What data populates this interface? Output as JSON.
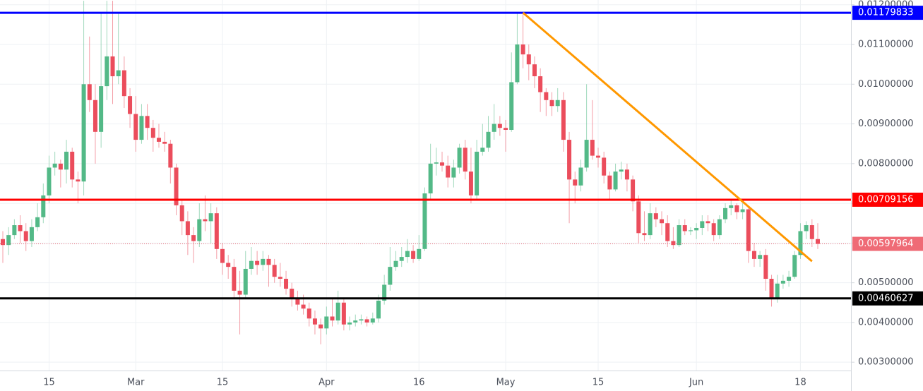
{
  "chart_data": {
    "type": "candlestick",
    "up_color": "#53b987",
    "down_color": "#eb4d5c",
    "grid": true,
    "ylim": [
      0.00279,
      0.01212
    ],
    "yticks": [
      {
        "value": 0.003,
        "label": "0.00300000"
      },
      {
        "value": 0.004,
        "label": "0.00400000"
      },
      {
        "value": 0.005,
        "label": "0.00500000"
      },
      {
        "value": 0.006,
        "label": "0.00600000"
      },
      {
        "value": 0.007,
        "label": "0.00700000"
      },
      {
        "value": 0.008,
        "label": "0.00800000"
      },
      {
        "value": 0.009,
        "label": "0.00900000"
      },
      {
        "value": 0.01,
        "label": "0.01000000"
      },
      {
        "value": 0.011,
        "label": "0.01100000"
      },
      {
        "value": 0.012,
        "label": "0.01200000"
      }
    ],
    "categories": [
      null,
      null,
      null,
      null,
      null,
      null,
      null,
      null,
      "15",
      null,
      null,
      null,
      null,
      null,
      null,
      null,
      null,
      null,
      null,
      null,
      null,
      null,
      null,
      "Mar",
      null,
      null,
      null,
      null,
      null,
      null,
      null,
      null,
      null,
      null,
      null,
      null,
      null,
      null,
      "15",
      null,
      null,
      null,
      null,
      null,
      null,
      null,
      null,
      null,
      null,
      null,
      null,
      null,
      null,
      null,
      null,
      null,
      "Apr",
      null,
      null,
      null,
      null,
      null,
      null,
      null,
      null,
      null,
      null,
      null,
      null,
      null,
      null,
      null,
      "16",
      null,
      null,
      null,
      null,
      null,
      null,
      null,
      null,
      null,
      null,
      null,
      null,
      null,
      null,
      "May",
      null,
      null,
      null,
      null,
      null,
      null,
      null,
      null,
      null,
      null,
      null,
      null,
      null,
      null,
      null,
      "15",
      null,
      null,
      null,
      null,
      null,
      null,
      null,
      null,
      null,
      null,
      null,
      null,
      null,
      null,
      null,
      null,
      "Jun",
      null,
      null,
      null,
      null,
      null,
      null,
      null,
      null,
      null,
      null,
      null,
      null,
      null,
      null,
      null,
      null,
      null,
      "18",
      null,
      null,
      null
    ],
    "ohlc": [
      [
        0.0061,
        0.0063,
        0.0055,
        0.00595
      ],
      [
        0.00595,
        0.0064,
        0.0057,
        0.0062
      ],
      [
        0.0062,
        0.0066,
        0.0061,
        0.00645
      ],
      [
        0.00645,
        0.0067,
        0.006,
        0.0063
      ],
      [
        0.0063,
        0.0065,
        0.0058,
        0.00605
      ],
      [
        0.00605,
        0.0066,
        0.0059,
        0.0064
      ],
      [
        0.0064,
        0.007,
        0.0063,
        0.00665
      ],
      [
        0.00665,
        0.0075,
        0.0065,
        0.0072
      ],
      [
        0.0072,
        0.0082,
        0.007,
        0.0079
      ],
      [
        0.0079,
        0.0083,
        0.0077,
        0.008
      ],
      [
        0.008,
        0.0081,
        0.0074,
        0.00785
      ],
      [
        0.00785,
        0.0086,
        0.0075,
        0.0083
      ],
      [
        0.0083,
        0.0084,
        0.0074,
        0.0076
      ],
      [
        0.0076,
        0.0078,
        0.007,
        0.00755
      ],
      [
        0.00755,
        0.0121,
        0.0072,
        0.01
      ],
      [
        0.01,
        0.0112,
        0.0093,
        0.0096
      ],
      [
        0.0096,
        0.01,
        0.008,
        0.0088
      ],
      [
        0.0088,
        0.0118,
        0.0084,
        0.00995
      ],
      [
        0.00995,
        0.0121,
        0.0096,
        0.0107
      ],
      [
        0.0107,
        0.0121,
        0.0095,
        0.0102
      ],
      [
        0.0102,
        0.0118,
        0.01,
        0.01035
      ],
      [
        0.01035,
        0.0107,
        0.0094,
        0.0097
      ],
      [
        0.0097,
        0.0099,
        0.0089,
        0.00925
      ],
      [
        0.00925,
        0.0097,
        0.0083,
        0.0086
      ],
      [
        0.0086,
        0.0095,
        0.0085,
        0.0092
      ],
      [
        0.0092,
        0.0095,
        0.0086,
        0.0089
      ],
      [
        0.0089,
        0.0091,
        0.0083,
        0.00865
      ],
      [
        0.00865,
        0.009,
        0.0084,
        0.00855
      ],
      [
        0.00855,
        0.0088,
        0.0083,
        0.0085
      ],
      [
        0.0085,
        0.0086,
        0.0075,
        0.0079
      ],
      [
        0.0079,
        0.008,
        0.0067,
        0.00695
      ],
      [
        0.00695,
        0.0071,
        0.0062,
        0.00655
      ],
      [
        0.00655,
        0.0068,
        0.0057,
        0.0062
      ],
      [
        0.0062,
        0.0064,
        0.0055,
        0.00605
      ],
      [
        0.00605,
        0.007,
        0.0059,
        0.0066
      ],
      [
        0.0066,
        0.0072,
        0.0063,
        0.00655
      ],
      [
        0.00655,
        0.007,
        0.006,
        0.00675
      ],
      [
        0.00675,
        0.0069,
        0.0056,
        0.00585
      ],
      [
        0.00585,
        0.006,
        0.0052,
        0.0055
      ],
      [
        0.0055,
        0.0057,
        0.0051,
        0.0054
      ],
      [
        0.0054,
        0.0056,
        0.0046,
        0.0048
      ],
      [
        0.0048,
        0.0053,
        0.0037,
        0.0047
      ],
      [
        0.0047,
        0.0058,
        0.0046,
        0.00535
      ],
      [
        0.00535,
        0.0059,
        0.0052,
        0.00555
      ],
      [
        0.00555,
        0.0058,
        0.0052,
        0.00545
      ],
      [
        0.00545,
        0.0058,
        0.0053,
        0.0056
      ],
      [
        0.0056,
        0.0057,
        0.0049,
        0.00545
      ],
      [
        0.00545,
        0.0056,
        0.005,
        0.00515
      ],
      [
        0.00515,
        0.0055,
        0.0049,
        0.0051
      ],
      [
        0.0051,
        0.0053,
        0.0047,
        0.00485
      ],
      [
        0.00485,
        0.005,
        0.0044,
        0.0046
      ],
      [
        0.0046,
        0.0048,
        0.0043,
        0.00445
      ],
      [
        0.00445,
        0.0047,
        0.0042,
        0.00435
      ],
      [
        0.00435,
        0.0045,
        0.0039,
        0.0041
      ],
      [
        0.0041,
        0.0043,
        0.0037,
        0.00395
      ],
      [
        0.00395,
        0.0041,
        0.00345,
        0.00385
      ],
      [
        0.00385,
        0.0044,
        0.0037,
        0.00415
      ],
      [
        0.00415,
        0.0046,
        0.0039,
        0.00405
      ],
      [
        0.00405,
        0.0048,
        0.00395,
        0.0045
      ],
      [
        0.0045,
        0.0046,
        0.0038,
        0.00395
      ],
      [
        0.00395,
        0.00415,
        0.0038,
        0.004
      ],
      [
        0.004,
        0.0042,
        0.0039,
        0.00405
      ],
      [
        0.00405,
        0.0042,
        0.00395,
        0.00408
      ],
      [
        0.00408,
        0.00415,
        0.0039,
        0.004
      ],
      [
        0.004,
        0.00425,
        0.00395,
        0.0041
      ],
      [
        0.0041,
        0.0047,
        0.004,
        0.00455
      ],
      [
        0.00455,
        0.0052,
        0.00445,
        0.00495
      ],
      [
        0.00495,
        0.0059,
        0.0048,
        0.0054
      ],
      [
        0.0054,
        0.0058,
        0.0053,
        0.00555
      ],
      [
        0.00555,
        0.0059,
        0.0054,
        0.00565
      ],
      [
        0.00565,
        0.0061,
        0.0055,
        0.0058
      ],
      [
        0.0058,
        0.00595,
        0.0055,
        0.0056
      ],
      [
        0.0056,
        0.0062,
        0.00555,
        0.00585
      ],
      [
        0.00585,
        0.0074,
        0.0058,
        0.00725
      ],
      [
        0.00725,
        0.0085,
        0.0071,
        0.008
      ],
      [
        0.008,
        0.0084,
        0.0077,
        0.00803
      ],
      [
        0.00803,
        0.0083,
        0.0078,
        0.00795
      ],
      [
        0.00795,
        0.0082,
        0.0074,
        0.00765
      ],
      [
        0.00765,
        0.0081,
        0.0074,
        0.0079
      ],
      [
        0.0079,
        0.0085,
        0.00775,
        0.0084
      ],
      [
        0.0084,
        0.0086,
        0.0076,
        0.0078
      ],
      [
        0.0078,
        0.0084,
        0.007,
        0.0072
      ],
      [
        0.0072,
        0.0086,
        0.0071,
        0.0083
      ],
      [
        0.0083,
        0.009,
        0.0082,
        0.0084
      ],
      [
        0.0084,
        0.0092,
        0.0083,
        0.0088
      ],
      [
        0.0088,
        0.0095,
        0.0086,
        0.009
      ],
      [
        0.009,
        0.0092,
        0.0087,
        0.0089
      ],
      [
        0.0089,
        0.0091,
        0.0083,
        0.00885
      ],
      [
        0.00885,
        0.0108,
        0.0088,
        0.01005
      ],
      [
        0.01005,
        0.0118,
        0.01,
        0.011
      ],
      [
        0.011,
        0.0118,
        0.0104,
        0.01075
      ],
      [
        0.01075,
        0.011,
        0.0101,
        0.0105
      ],
      [
        0.0105,
        0.0107,
        0.0099,
        0.0102
      ],
      [
        0.0102,
        0.0104,
        0.0093,
        0.0098
      ],
      [
        0.0098,
        0.0099,
        0.0092,
        0.0096
      ],
      [
        0.0096,
        0.0098,
        0.0092,
        0.00945
      ],
      [
        0.00945,
        0.0099,
        0.0093,
        0.0096
      ],
      [
        0.0096,
        0.0098,
        0.0083,
        0.0086
      ],
      [
        0.0086,
        0.0088,
        0.0065,
        0.0076
      ],
      [
        0.0076,
        0.0078,
        0.007,
        0.00745
      ],
      [
        0.00745,
        0.0081,
        0.0073,
        0.0079
      ],
      [
        0.0079,
        0.01,
        0.0078,
        0.0086
      ],
      [
        0.0086,
        0.0096,
        0.0081,
        0.0082
      ],
      [
        0.0082,
        0.0084,
        0.0079,
        0.00815
      ],
      [
        0.00815,
        0.0083,
        0.0075,
        0.0077
      ],
      [
        0.0077,
        0.0078,
        0.0071,
        0.00735
      ],
      [
        0.00735,
        0.008,
        0.0073,
        0.0078
      ],
      [
        0.0078,
        0.00805,
        0.0076,
        0.00785
      ],
      [
        0.00785,
        0.008,
        0.0073,
        0.0076
      ],
      [
        0.0076,
        0.0077,
        0.0068,
        0.00705
      ],
      [
        0.00705,
        0.0072,
        0.006,
        0.00625
      ],
      [
        0.00625,
        0.0068,
        0.00605,
        0.0062
      ],
      [
        0.0062,
        0.007,
        0.0061,
        0.00675
      ],
      [
        0.00675,
        0.0069,
        0.0064,
        0.0066
      ],
      [
        0.0066,
        0.0068,
        0.0062,
        0.0065
      ],
      [
        0.0065,
        0.0067,
        0.0059,
        0.00605
      ],
      [
        0.00605,
        0.0064,
        0.00585,
        0.00595
      ],
      [
        0.00595,
        0.0066,
        0.0059,
        0.00645
      ],
      [
        0.00645,
        0.0066,
        0.0062,
        0.0063
      ],
      [
        0.0063,
        0.0064,
        0.0062,
        0.00632
      ],
      [
        0.00632,
        0.0065,
        0.0061,
        0.00638
      ],
      [
        0.00638,
        0.0067,
        0.0062,
        0.00655
      ],
      [
        0.00655,
        0.0067,
        0.0063,
        0.0065
      ],
      [
        0.0065,
        0.0066,
        0.00605,
        0.0062
      ],
      [
        0.0062,
        0.0067,
        0.0061,
        0.0066
      ],
      [
        0.0066,
        0.007,
        0.0065,
        0.00688
      ],
      [
        0.00688,
        0.0071,
        0.0067,
        0.00695
      ],
      [
        0.00695,
        0.007,
        0.0066,
        0.00678
      ],
      [
        0.00678,
        0.007,
        0.0066,
        0.00685
      ],
      [
        0.00685,
        0.0069,
        0.0055,
        0.0058
      ],
      [
        0.0058,
        0.006,
        0.0054,
        0.0056
      ],
      [
        0.0056,
        0.0058,
        0.0054,
        0.0057
      ],
      [
        0.0057,
        0.00585,
        0.0048,
        0.0051
      ],
      [
        0.0051,
        0.0052,
        0.0044,
        0.0046
      ],
      [
        0.0046,
        0.0052,
        0.0045,
        0.00498
      ],
      [
        0.00498,
        0.0052,
        0.00485,
        0.00505
      ],
      [
        0.00505,
        0.0053,
        0.0049,
        0.00515
      ],
      [
        0.00515,
        0.0058,
        0.0051,
        0.0057
      ],
      [
        0.0057,
        0.0065,
        0.0056,
        0.0063
      ],
      [
        0.0063,
        0.00655,
        0.0061,
        0.00645
      ],
      [
        0.00645,
        0.0066,
        0.0059,
        0.0061
      ],
      [
        0.0061,
        0.0065,
        0.00585,
        0.00597964
      ]
    ],
    "levels": [
      {
        "value": 0.01179833,
        "color": "#0000ff"
      },
      {
        "value": 0.00709156,
        "color": "#ff0000"
      },
      {
        "value": 0.00460627,
        "color": "#000000"
      }
    ],
    "last_price": {
      "value": 0.00597964,
      "color": "#ef6b76"
    },
    "trendline": {
      "x": [
        90,
        140
      ],
      "y": [
        0.0118,
        0.00554
      ],
      "color": "#ff9800"
    }
  }
}
